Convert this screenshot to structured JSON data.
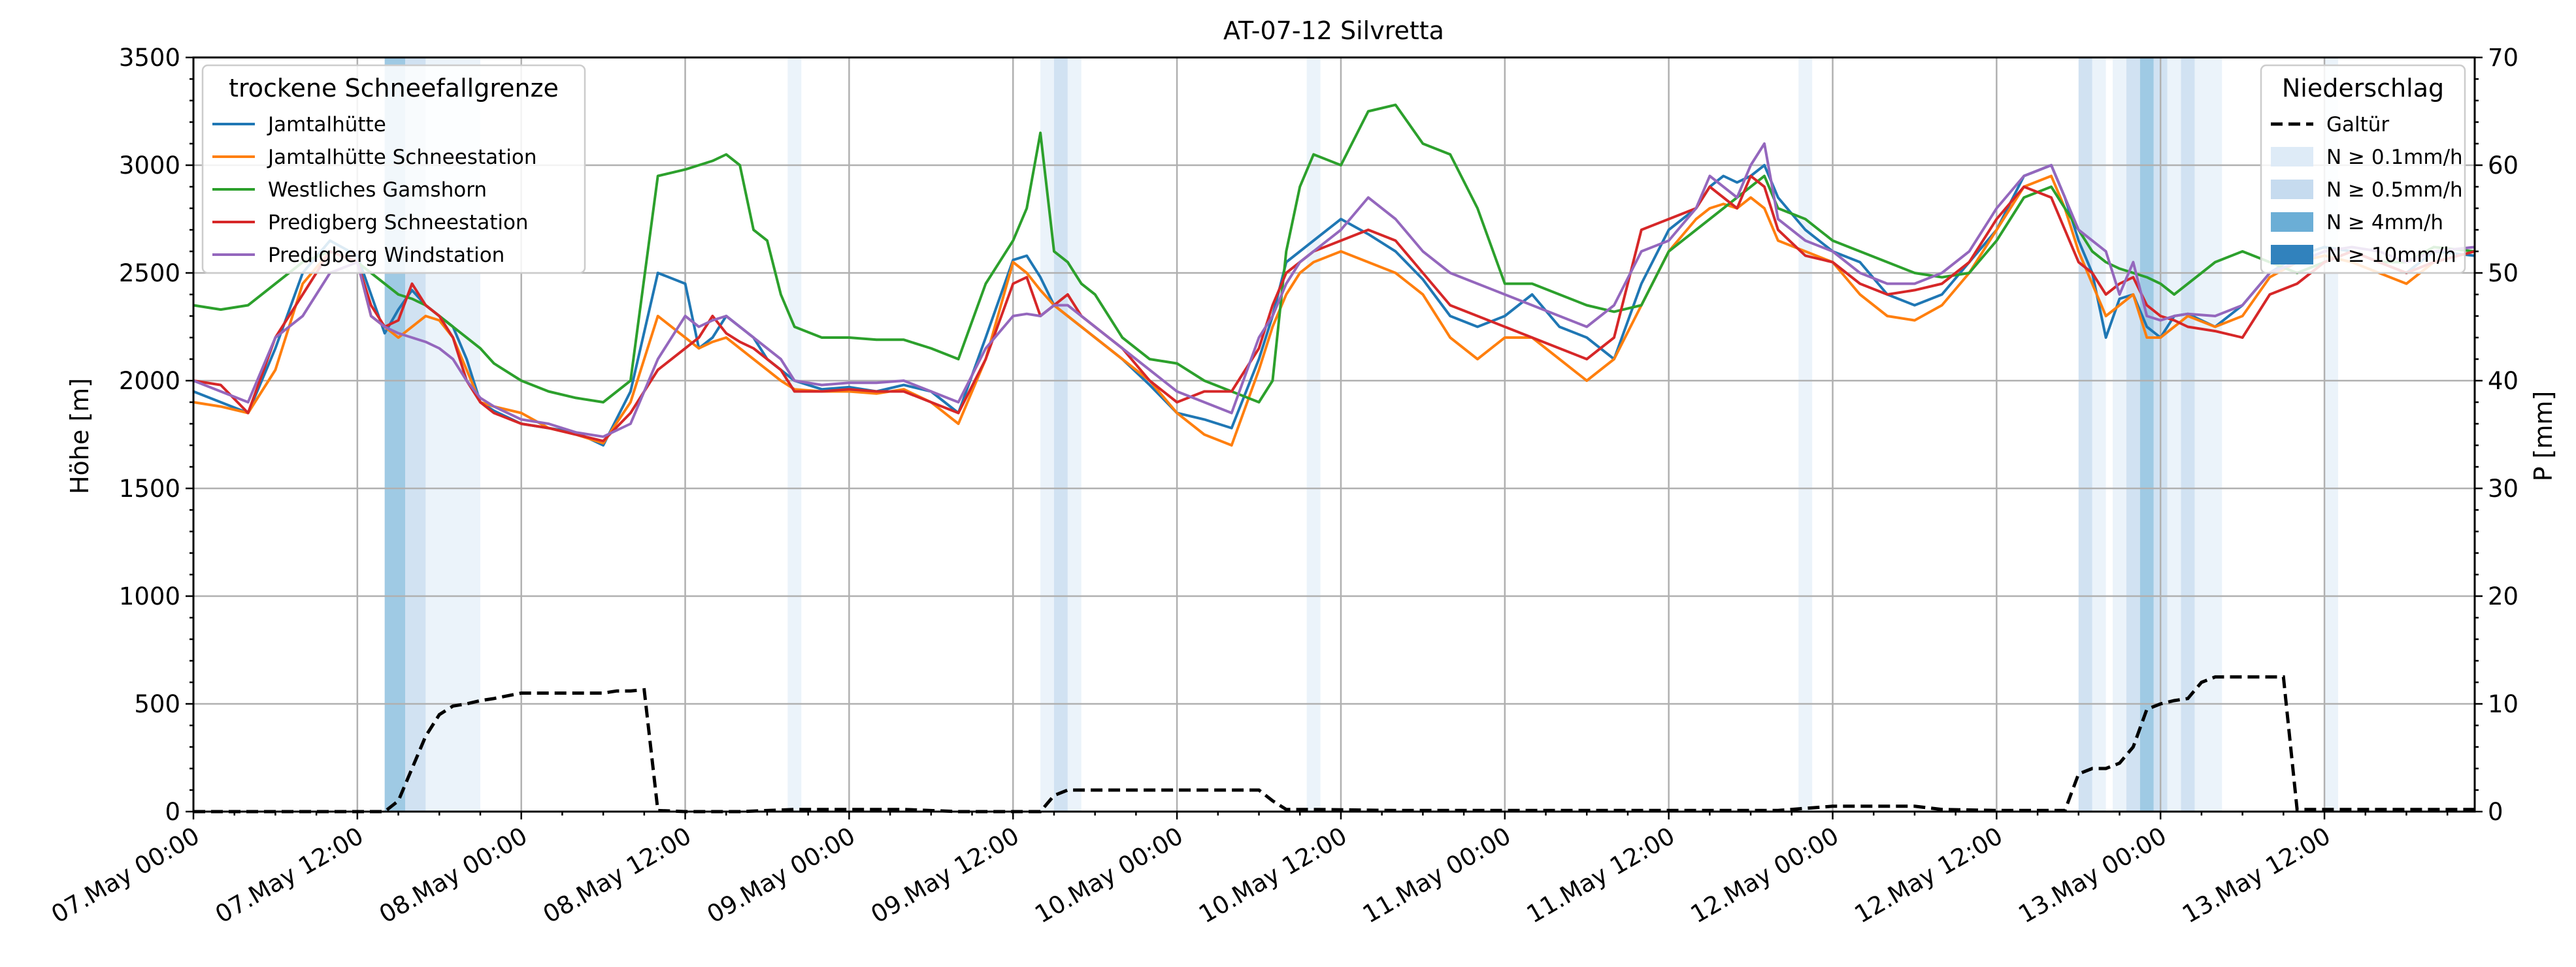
{
  "chart_data": {
    "type": "line",
    "title": "AT-07-12 Silvretta",
    "ylabel": "Höhe [m]",
    "ylabel_right": "P [mm]",
    "ylim": [
      0,
      3500
    ],
    "ylim_right": [
      0,
      70
    ],
    "yticks": [
      0,
      500,
      1000,
      1500,
      2000,
      2500,
      3000,
      3500
    ],
    "yticks_right": [
      0,
      10,
      20,
      30,
      40,
      50,
      60,
      70
    ],
    "xlim_hours": [
      0,
      167
    ],
    "xticks": [
      {
        "h": 0,
        "label": "07.May 00:00"
      },
      {
        "h": 12,
        "label": "07.May 12:00"
      },
      {
        "h": 24,
        "label": "08.May 00:00"
      },
      {
        "h": 36,
        "label": "08.May 12:00"
      },
      {
        "h": 48,
        "label": "09.May 00:00"
      },
      {
        "h": 60,
        "label": "09.May 12:00"
      },
      {
        "h": 72,
        "label": "10.May 00:00"
      },
      {
        "h": 84,
        "label": "10.May 12:00"
      },
      {
        "h": 96,
        "label": "11.May 00:00"
      },
      {
        "h": 108,
        "label": "11.May 12:00"
      },
      {
        "h": 120,
        "label": "12.May 00:00"
      },
      {
        "h": 132,
        "label": "12.May 12:00"
      },
      {
        "h": 144,
        "label": "13.May 00:00"
      },
      {
        "h": 156,
        "label": "13.May 12:00"
      }
    ],
    "grid": true,
    "legend_left": {
      "title": "trockene Schneefallgrenze",
      "placement": "top-left"
    },
    "legend_right": {
      "title": "Niederschlag",
      "placement": "top-right",
      "entries": [
        {
          "label": "Galtür",
          "kind": "dashed",
          "color": "#000000"
        },
        {
          "label": "N ≥ 0.1mm/h",
          "kind": "patch",
          "color": "#deebf7"
        },
        {
          "label": "N ≥ 0.5mm/h",
          "kind": "patch",
          "color": "#c6dbef"
        },
        {
          "label": "N ≥ 4mm/h",
          "kind": "patch",
          "color": "#6baed6"
        },
        {
          "label": "N ≥ 10mm/h",
          "kind": "patch",
          "color": "#3182bd"
        }
      ]
    },
    "precip_bands": [
      {
        "start": 14,
        "end": 15.5,
        "level": 3
      },
      {
        "start": 15.5,
        "end": 17,
        "level": 2
      },
      {
        "start": 17,
        "end": 21,
        "level": 1
      },
      {
        "start": 43.5,
        "end": 44.5,
        "level": 1
      },
      {
        "start": 62,
        "end": 63,
        "level": 1
      },
      {
        "start": 63,
        "end": 64,
        "level": 2
      },
      {
        "start": 64,
        "end": 65,
        "level": 1
      },
      {
        "start": 81.5,
        "end": 82.5,
        "level": 1
      },
      {
        "start": 117.5,
        "end": 118.5,
        "level": 1
      },
      {
        "start": 138,
        "end": 139,
        "level": 2
      },
      {
        "start": 139,
        "end": 140,
        "level": 1
      },
      {
        "start": 140.5,
        "end": 141.5,
        "level": 1
      },
      {
        "start": 141.5,
        "end": 142.5,
        "level": 2
      },
      {
        "start": 142.5,
        "end": 143.5,
        "level": 3
      },
      {
        "start": 143.5,
        "end": 144.5,
        "level": 2
      },
      {
        "start": 144.5,
        "end": 145.5,
        "level": 1
      },
      {
        "start": 145.5,
        "end": 146.5,
        "level": 2
      },
      {
        "start": 146.5,
        "end": 148.5,
        "level": 1
      },
      {
        "start": 156,
        "end": 157,
        "level": 1
      }
    ],
    "precip_series": {
      "name": "Galtür",
      "color": "#000000",
      "x": [
        0,
        14,
        15,
        16,
        17,
        18,
        19,
        20,
        21,
        22,
        24,
        26,
        28,
        30,
        31,
        32,
        33,
        34,
        36,
        40,
        44,
        48,
        52,
        56,
        60,
        62,
        63,
        64,
        66,
        70,
        74,
        78,
        79,
        80,
        82,
        88,
        96,
        104,
        112,
        116,
        118,
        120,
        124,
        126,
        128,
        132,
        136,
        137,
        138,
        139,
        140,
        141,
        142,
        143,
        144,
        145,
        146,
        147,
        148,
        150,
        152,
        153,
        154,
        160,
        167
      ],
      "values": [
        0,
        0,
        1,
        4,
        7,
        9,
        9.8,
        10,
        10.3,
        10.5,
        11,
        11,
        11,
        11,
        11.2,
        11.2,
        11.3,
        0.1,
        0,
        0,
        0.2,
        0.2,
        0.2,
        0,
        0,
        0,
        1.5,
        2,
        2,
        2,
        2,
        2,
        1,
        0.2,
        0.2,
        0.1,
        0.1,
        0.1,
        0.1,
        0.1,
        0.3,
        0.5,
        0.5,
        0.5,
        0.2,
        0.1,
        0.1,
        0.1,
        3.5,
        4,
        4,
        4.5,
        6,
        9.5,
        10,
        10.3,
        10.5,
        12,
        12.5,
        12.5,
        12.5,
        12.5,
        0.2,
        0.2,
        0.2
      ]
    },
    "x_hours": [
      0,
      2,
      4,
      6,
      8,
      10,
      12,
      13,
      14,
      15,
      16,
      17,
      18,
      19,
      20,
      21,
      22,
      24,
      26,
      28,
      30,
      32,
      34,
      36,
      37,
      38,
      39,
      40,
      41,
      42,
      43,
      44,
      46,
      48,
      50,
      52,
      54,
      56,
      58,
      60,
      61,
      62,
      63,
      64,
      65,
      66,
      68,
      70,
      72,
      74,
      76,
      78,
      79,
      80,
      81,
      82,
      84,
      86,
      88,
      90,
      92,
      94,
      96,
      98,
      100,
      102,
      104,
      106,
      108,
      110,
      111,
      112,
      113,
      114,
      115,
      116,
      118,
      120,
      122,
      124,
      126,
      128,
      130,
      132,
      134,
      136,
      137,
      138,
      139,
      140,
      141,
      142,
      143,
      144,
      145,
      146,
      148,
      150,
      152,
      154,
      156,
      158,
      160,
      162,
      164,
      167
    ],
    "series": [
      {
        "name": "Jamtalhütte",
        "color": "#1f77b4",
        "values": [
          1950,
          1900,
          1850,
          2150,
          2500,
          2650,
          2580,
          2400,
          2220,
          2330,
          2420,
          2350,
          2300,
          2250,
          2100,
          1900,
          1860,
          1800,
          1780,
          1760,
          1700,
          1950,
          2500,
          2450,
          2150,
          2200,
          2300,
          2250,
          2200,
          2100,
          2050,
          2000,
          1960,
          1970,
          1950,
          1980,
          1950,
          1850,
          2200,
          2560,
          2580,
          2480,
          2350,
          2300,
          2250,
          2200,
          2100,
          1980,
          1850,
          1820,
          1780,
          2100,
          2300,
          2550,
          2600,
          2650,
          2750,
          2680,
          2600,
          2470,
          2300,
          2250,
          2300,
          2400,
          2250,
          2200,
          2100,
          2450,
          2700,
          2800,
          2900,
          2950,
          2920,
          2950,
          3000,
          2850,
          2700,
          2600,
          2550,
          2400,
          2350,
          2400,
          2550,
          2700,
          2950,
          3000,
          2850,
          2650,
          2500,
          2200,
          2380,
          2400,
          2250,
          2200,
          2300,
          2310,
          2250,
          2350,
          2500,
          2580,
          2620,
          2600,
          2550,
          2500,
          2600,
          2580
        ]
      },
      {
        "name": "Jamtalhütte Schneestation",
        "color": "#ff7f0e",
        "values": [
          1900,
          1880,
          1850,
          2050,
          2450,
          2600,
          2550,
          2300,
          2250,
          2200,
          2250,
          2300,
          2280,
          2200,
          2050,
          1900,
          1880,
          1850,
          1780,
          1750,
          1710,
          1900,
          2300,
          2200,
          2150,
          2180,
          2200,
          2150,
          2100,
          2050,
          2000,
          1960,
          1950,
          1950,
          1940,
          1960,
          1900,
          1800,
          2100,
          2550,
          2500,
          2420,
          2350,
          2300,
          2250,
          2200,
          2100,
          2000,
          1850,
          1750,
          1700,
          2050,
          2250,
          2400,
          2500,
          2550,
          2600,
          2550,
          2500,
          2400,
          2200,
          2100,
          2200,
          2200,
          2100,
          2000,
          2100,
          2350,
          2600,
          2750,
          2800,
          2820,
          2800,
          2850,
          2800,
          2650,
          2600,
          2550,
          2400,
          2300,
          2280,
          2350,
          2500,
          2700,
          2900,
          2950,
          2800,
          2600,
          2450,
          2300,
          2350,
          2400,
          2200,
          2200,
          2250,
          2300,
          2250,
          2300,
          2480,
          2550,
          2580,
          2550,
          2500,
          2450,
          2550,
          2600
        ]
      },
      {
        "name": "Westliches Gamshorn",
        "color": "#2ca02c",
        "values": [
          2350,
          2330,
          2350,
          2450,
          2550,
          2600,
          2550,
          2500,
          2450,
          2400,
          2380,
          2350,
          2300,
          2250,
          2200,
          2150,
          2080,
          2000,
          1950,
          1920,
          1900,
          2000,
          2950,
          2980,
          3000,
          3020,
          3050,
          3000,
          2700,
          2650,
          2400,
          2250,
          2200,
          2200,
          2190,
          2190,
          2150,
          2100,
          2450,
          2650,
          2800,
          3150,
          2600,
          2550,
          2450,
          2400,
          2200,
          2100,
          2080,
          2000,
          1950,
          1900,
          2000,
          2600,
          2900,
          3050,
          3000,
          3250,
          3280,
          3100,
          3050,
          2800,
          2450,
          2450,
          2400,
          2350,
          2320,
          2350,
          2600,
          2700,
          2750,
          2800,
          2850,
          2900,
          2950,
          2800,
          2750,
          2650,
          2600,
          2550,
          2500,
          2480,
          2500,
          2650,
          2850,
          2900,
          2800,
          2700,
          2600,
          2550,
          2520,
          2500,
          2480,
          2450,
          2400,
          2450,
          2550,
          2600,
          2550,
          2500,
          2550,
          2600,
          2550,
          2550,
          2620,
          2600
        ]
      },
      {
        "name": "Predigberg Schneestation",
        "color": "#d62728",
        "values": [
          2000,
          1980,
          1850,
          2200,
          2400,
          2600,
          2550,
          2350,
          2250,
          2280,
          2450,
          2350,
          2300,
          2200,
          2000,
          1900,
          1850,
          1800,
          1780,
          1750,
          1720,
          1850,
          2050,
          2150,
          2200,
          2300,
          2220,
          2180,
          2150,
          2100,
          2050,
          1950,
          1950,
          1960,
          1950,
          1950,
          1900,
          1850,
          2100,
          2450,
          2480,
          2300,
          2350,
          2400,
          2300,
          2250,
          2150,
          2000,
          1900,
          1950,
          1950,
          2150,
          2350,
          2500,
          2550,
          2600,
          2650,
          2700,
          2650,
          2500,
          2350,
          2300,
          2250,
          2200,
          2150,
          2100,
          2200,
          2700,
          2750,
          2800,
          2900,
          2850,
          2800,
          2950,
          2900,
          2700,
          2580,
          2550,
          2450,
          2400,
          2420,
          2450,
          2550,
          2750,
          2900,
          2850,
          2700,
          2550,
          2500,
          2400,
          2450,
          2480,
          2350,
          2300,
          2280,
          2250,
          2230,
          2200,
          2400,
          2450,
          2550,
          2600,
          2550,
          2500,
          2550,
          2600
        ]
      },
      {
        "name": "Predigberg Windstation",
        "color": "#9467bd",
        "values": [
          2000,
          1950,
          1900,
          2200,
          2300,
          2500,
          2550,
          2300,
          2250,
          2220,
          2200,
          2180,
          2150,
          2100,
          2000,
          1920,
          1880,
          1820,
          1800,
          1760,
          1740,
          1800,
          2100,
          2300,
          2250,
          2280,
          2300,
          2250,
          2200,
          2150,
          2100,
          2000,
          1980,
          1990,
          1990,
          2000,
          1950,
          1900,
          2150,
          2300,
          2310,
          2300,
          2350,
          2350,
          2300,
          2250,
          2150,
          2050,
          1950,
          1900,
          1850,
          2200,
          2300,
          2450,
          2550,
          2600,
          2700,
          2850,
          2750,
          2600,
          2500,
          2450,
          2400,
          2350,
          2300,
          2250,
          2350,
          2600,
          2650,
          2800,
          2950,
          2900,
          2850,
          3000,
          3100,
          2750,
          2650,
          2600,
          2500,
          2450,
          2450,
          2500,
          2600,
          2800,
          2950,
          3000,
          2850,
          2700,
          2650,
          2600,
          2400,
          2550,
          2300,
          2280,
          2300,
          2310,
          2300,
          2350,
          2500,
          2550,
          2600,
          2620,
          2600,
          2550,
          2600,
          2620
        ]
      }
    ]
  }
}
